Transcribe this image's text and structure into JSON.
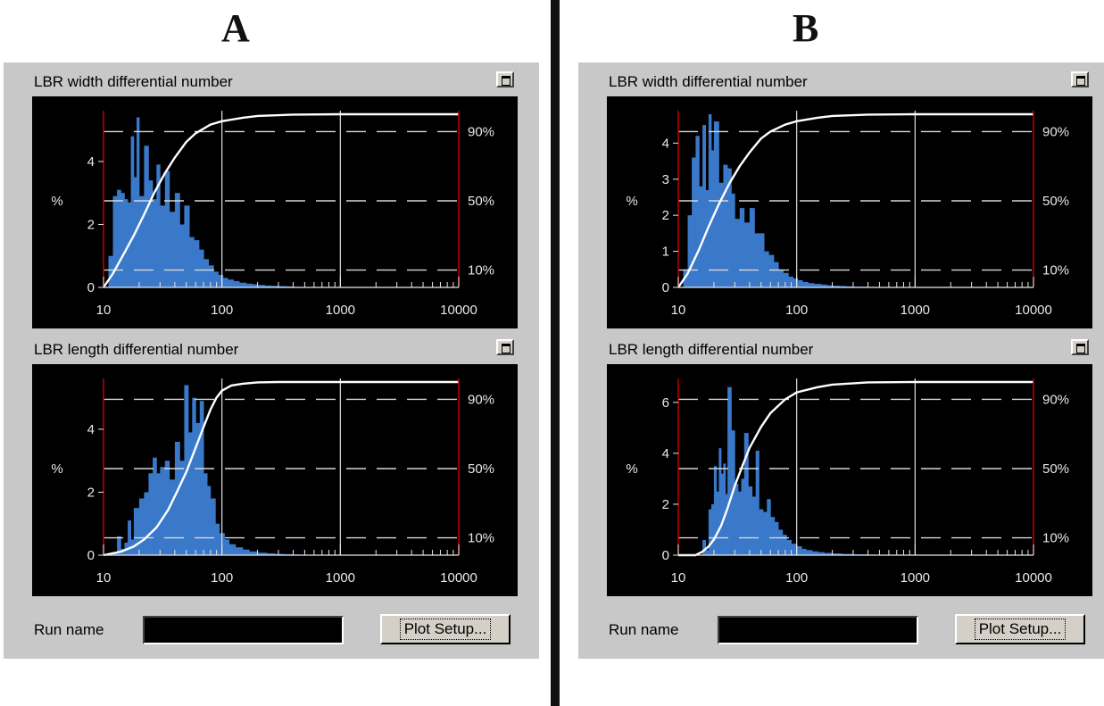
{
  "figure": {
    "panel_a_label": "A",
    "panel_b_label": "B"
  },
  "panels": [
    {
      "plots": [
        {
          "title": "LBR width differential number"
        },
        {
          "title": "LBR length differential number"
        }
      ],
      "run_name_label": "Run name",
      "run_name_value": "",
      "plot_setup_label": "Plot Setup..."
    },
    {
      "plots": [
        {
          "title": "LBR width differential number"
        },
        {
          "title": "LBR length differential number"
        }
      ],
      "run_name_label": "Run name",
      "run_name_value": "",
      "plot_setup_label": "Plot Setup..."
    }
  ],
  "colors": {
    "bars": "#3a78c9",
    "cumulative": "#ffffff",
    "background": "#000000",
    "border": "#c00000",
    "panel": "#c8c8c8"
  },
  "chart_data": [
    {
      "id": "A-width",
      "type": "bar",
      "title": "LBR width differential number",
      "xscale": "log",
      "xlim": [
        10,
        10000
      ],
      "xticks": [
        "10",
        "100",
        "1000",
        "10000"
      ],
      "ylabel": "%",
      "ylim": [
        0,
        5.5
      ],
      "yticks": [
        0,
        2,
        4
      ],
      "y2ticks": [
        "10%",
        "50%",
        "90%"
      ],
      "series": [
        {
          "values_x": [
            11,
            12,
            13,
            14,
            15,
            16,
            17,
            18,
            19,
            20,
            22,
            24,
            26,
            28,
            30,
            33,
            36,
            40,
            44,
            48,
            53,
            58,
            64,
            70,
            77,
            85,
            93,
            102,
            112,
            125,
            140,
            160,
            180,
            200,
            230,
            260,
            300,
            350,
            400
          ],
          "values_y": [
            1.0,
            2.9,
            3.1,
            3.0,
            2.8,
            2.7,
            4.8,
            3.5,
            5.4,
            2.9,
            4.5,
            3.4,
            2.8,
            3.9,
            2.6,
            3.7,
            2.4,
            3.0,
            2.0,
            2.6,
            1.6,
            1.5,
            1.2,
            0.9,
            0.7,
            0.5,
            0.4,
            0.3,
            0.25,
            0.2,
            0.15,
            0.12,
            0.1,
            0.08,
            0.06,
            0.05,
            0.04,
            0.03,
            0.02
          ]
        },
        {
          "name": "cumulative",
          "points_x": [
            10,
            12,
            15,
            18,
            22,
            27,
            33,
            40,
            50,
            60,
            80,
            100,
            150,
            200,
            400,
            1000,
            10000
          ],
          "points_pct": [
            0,
            8,
            20,
            30,
            42,
            55,
            66,
            75,
            84,
            89,
            94,
            96,
            98,
            99,
            99.8,
            100,
            100
          ]
        }
      ]
    },
    {
      "id": "A-length",
      "type": "bar",
      "title": "LBR length differential number",
      "xscale": "log",
      "xlim": [
        10,
        10000
      ],
      "xticks": [
        "10",
        "100",
        "1000",
        "10000"
      ],
      "ylabel": "%",
      "ylim": [
        0,
        5.5
      ],
      "yticks": [
        0,
        2,
        4
      ],
      "y2ticks": [
        "10%",
        "50%",
        "90%"
      ],
      "series": [
        {
          "values_x": [
            12,
            13,
            14,
            15,
            16,
            17,
            18,
            20,
            22,
            24,
            26,
            28,
            30,
            33,
            36,
            40,
            44,
            48,
            52,
            56,
            60,
            65,
            70,
            75,
            80,
            88,
            95,
            105,
            115,
            130,
            150,
            170,
            200,
            240,
            280,
            330,
            400
          ],
          "values_y": [
            0.1,
            0.6,
            0.2,
            0.4,
            1.1,
            0.5,
            1.5,
            1.8,
            2.0,
            2.6,
            3.1,
            2.6,
            2.8,
            3.0,
            2.4,
            3.6,
            3.0,
            5.4,
            3.9,
            5.0,
            4.2,
            4.9,
            2.6,
            2.2,
            1.8,
            1.0,
            0.7,
            0.5,
            0.35,
            0.25,
            0.18,
            0.12,
            0.08,
            0.06,
            0.04,
            0.03,
            0.02
          ]
        },
        {
          "name": "cumulative",
          "points_x": [
            10,
            14,
            18,
            22,
            28,
            35,
            42,
            50,
            60,
            70,
            80,
            90,
            100,
            120,
            150,
            200,
            300,
            10000
          ],
          "points_pct": [
            0,
            2,
            5,
            9,
            16,
            26,
            37,
            48,
            62,
            74,
            84,
            91,
            95,
            98,
            99,
            99.8,
            100,
            100
          ]
        }
      ]
    },
    {
      "id": "B-width",
      "type": "bar",
      "title": "LBR width differential number",
      "xscale": "log",
      "xlim": [
        10,
        10000
      ],
      "xticks": [
        "10",
        "100",
        "1000",
        "10000"
      ],
      "ylabel": "%",
      "ylim": [
        0,
        4.8
      ],
      "yticks": [
        0,
        1,
        2,
        3,
        4
      ],
      "y2ticks": [
        "10%",
        "50%",
        "90%"
      ],
      "series": [
        {
          "values_x": [
            11,
            12,
            13,
            14,
            15,
            16,
            17,
            18,
            19,
            20,
            22,
            24,
            26,
            28,
            30,
            33,
            36,
            40,
            44,
            48,
            53,
            58,
            64,
            70,
            77,
            85,
            93,
            102,
            112,
            125,
            140,
            160,
            180,
            200,
            230,
            260,
            300,
            350,
            400,
            500
          ],
          "values_y": [
            0.5,
            2.0,
            3.6,
            4.2,
            2.8,
            4.5,
            2.7,
            4.8,
            3.8,
            4.6,
            2.9,
            3.4,
            3.3,
            2.6,
            1.9,
            2.2,
            1.8,
            2.2,
            1.5,
            1.5,
            1.0,
            0.9,
            0.7,
            0.5,
            0.4,
            0.3,
            0.25,
            0.2,
            0.15,
            0.12,
            0.1,
            0.08,
            0.06,
            0.05,
            0.04,
            0.03,
            0.02,
            0.02,
            0.01,
            0.01
          ]
        },
        {
          "name": "cumulative",
          "points_x": [
            10,
            12,
            15,
            18,
            22,
            27,
            33,
            40,
            50,
            60,
            80,
            100,
            150,
            200,
            400,
            1000,
            10000
          ],
          "points_pct": [
            0,
            8,
            22,
            35,
            48,
            60,
            70,
            78,
            86,
            90,
            94,
            96,
            98,
            99,
            99.8,
            100,
            100
          ]
        }
      ]
    },
    {
      "id": "B-length",
      "type": "bar",
      "title": "LBR length differential number",
      "xscale": "log",
      "xlim": [
        10,
        10000
      ],
      "xticks": [
        "10",
        "100",
        "1000",
        "10000"
      ],
      "ylabel": "%",
      "ylim": [
        0,
        6.8
      ],
      "yticks": [
        0,
        2,
        4,
        6
      ],
      "y2ticks": [
        "10%",
        "50%",
        "90%"
      ],
      "series": [
        {
          "values_x": [
            16,
            17,
            18,
            19,
            20,
            21,
            22,
            23,
            24,
            25,
            26,
            28,
            30,
            32,
            34,
            36,
            39,
            42,
            45,
            48,
            52,
            56,
            60,
            65,
            70,
            76,
            82,
            90,
            100,
            110,
            120,
            135,
            150,
            170,
            200,
            240,
            300,
            400
          ],
          "values_y": [
            0.6,
            0.2,
            1.8,
            2.0,
            3.5,
            2.5,
            4.2,
            3.2,
            3.6,
            2.4,
            6.6,
            4.9,
            2.8,
            2.5,
            3.0,
            4.8,
            2.7,
            2.3,
            4.1,
            1.8,
            1.7,
            2.2,
            1.5,
            1.3,
            1.0,
            0.8,
            0.6,
            0.45,
            0.35,
            0.25,
            0.2,
            0.15,
            0.12,
            0.09,
            0.07,
            0.05,
            0.03,
            0.02
          ]
        },
        {
          "name": "cumulative",
          "points_x": [
            10,
            14,
            16,
            18,
            20,
            23,
            26,
            30,
            35,
            40,
            50,
            60,
            80,
            100,
            150,
            200,
            400,
            1000,
            10000
          ],
          "points_pct": [
            0,
            0,
            2,
            5,
            9,
            17,
            27,
            40,
            52,
            62,
            74,
            82,
            90,
            94,
            97,
            98.5,
            99.8,
            100,
            100
          ]
        }
      ]
    }
  ]
}
